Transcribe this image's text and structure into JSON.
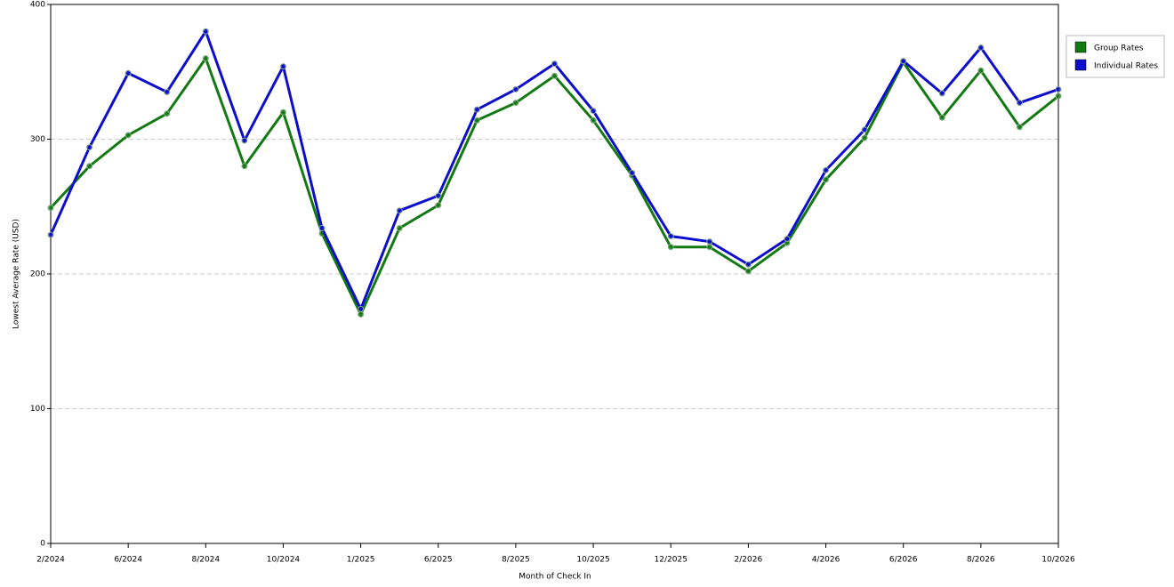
{
  "chart_data": {
    "type": "line",
    "x_label": "Month of Check In",
    "y_label": "Lowest Average Rate (USD)",
    "categories": [
      "2/2024",
      null,
      "6/2024",
      null,
      "8/2024",
      null,
      "10/2024",
      null,
      "1/2025",
      null,
      "6/2025",
      null,
      "8/2025",
      null,
      "10/2025",
      null,
      "12/2025",
      null,
      "2/2026",
      null,
      "4/2026",
      null,
      "6/2026",
      null,
      "8/2026",
      null,
      "10/2026"
    ],
    "series": [
      {
        "name": "Group Rates",
        "color": "#137a13",
        "values": [
          249,
          280,
          303,
          319,
          360,
          280,
          320,
          230,
          170,
          234,
          251,
          314,
          327,
          347,
          314,
          273,
          220,
          220,
          202,
          223,
          270,
          301,
          357,
          316,
          351,
          309,
          332
        ]
      },
      {
        "name": "Individual Rates",
        "color": "#0d0dcc",
        "values": [
          229,
          294,
          349,
          335,
          380,
          299,
          354,
          234,
          174,
          247,
          258,
          322,
          337,
          356,
          321,
          275,
          228,
          224,
          207,
          226,
          277,
          307,
          358,
          334,
          368,
          327,
          337
        ]
      }
    ],
    "ylim": [
      0,
      400
    ],
    "yticks": [
      0,
      100,
      200,
      300,
      400
    ],
    "grid": true,
    "legend": "right"
  }
}
